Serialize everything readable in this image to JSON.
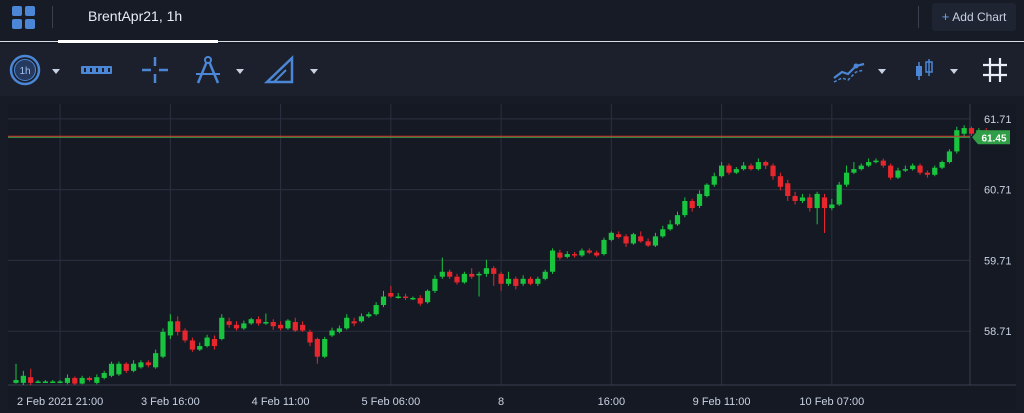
{
  "header": {
    "tab_title": "BrentApr21, 1h",
    "add_chart_label": "Add Chart"
  },
  "toolbar": {
    "interval_label": "1h",
    "icons": [
      "timeframe-icon",
      "ruler-icon",
      "crosshair-icon",
      "compass-drawing-icon",
      "triangle-drawing-icon",
      "indicators-icon",
      "candlestick-type-icon",
      "grid-icon"
    ]
  },
  "colors": {
    "up": "#19c43f",
    "down": "#e8262d",
    "accent": "#4b87d6",
    "price_line": "#3aa84a",
    "price_label_bg": "#2f9e47"
  },
  "chart_data": {
    "type": "candlestick",
    "symbol": "BrentApr21",
    "interval": "1h",
    "y_ticks": [
      58.71,
      59.71,
      60.71,
      61.71
    ],
    "ylim": [
      57.95,
      61.92
    ],
    "x_tick_labels": [
      "2 Feb 2021 21:00",
      "3 Feb 16:00",
      "4 Feb 11:00",
      "5 Feb 06:00",
      "8",
      "16:00",
      "9 Feb 11:00",
      "10 Feb 07:00"
    ],
    "x_tick_bars": [
      6,
      21,
      36,
      51,
      66,
      81,
      96,
      111
    ],
    "current_price": 61.45,
    "candles": [
      [
        57.98,
        58.02,
        58.25,
        57.97
      ],
      [
        57.98,
        58.08,
        58.15,
        57.95
      ],
      [
        58.06,
        57.98,
        58.18,
        57.95
      ],
      [
        58.0,
        58.0,
        58.02,
        57.98
      ],
      [
        58.0,
        58.0,
        58.02,
        57.98
      ],
      [
        58.0,
        58.0,
        58.02,
        57.98
      ],
      [
        58.0,
        58.0,
        58.02,
        57.98
      ],
      [
        57.98,
        58.05,
        58.1,
        57.96
      ],
      [
        58.05,
        57.97,
        58.07,
        57.95
      ],
      [
        57.97,
        58.05,
        58.08,
        57.96
      ],
      [
        58.05,
        58.02,
        58.07,
        58.0
      ],
      [
        57.98,
        58.06,
        58.1,
        57.96
      ],
      [
        58.05,
        58.12,
        58.15,
        58.03
      ],
      [
        58.08,
        58.25,
        58.28,
        58.06
      ],
      [
        58.1,
        58.25,
        58.28,
        58.08
      ],
      [
        58.25,
        58.15,
        58.27,
        58.12
      ],
      [
        58.15,
        58.25,
        58.3,
        58.13
      ],
      [
        58.2,
        58.27,
        58.3,
        58.18
      ],
      [
        58.27,
        58.23,
        58.3,
        58.2
      ],
      [
        58.2,
        58.4,
        58.45,
        58.18
      ],
      [
        58.35,
        58.7,
        58.75,
        58.33
      ],
      [
        58.65,
        58.85,
        58.95,
        58.6
      ],
      [
        58.85,
        58.7,
        58.92,
        58.65
      ],
      [
        58.72,
        58.58,
        58.75,
        58.55
      ],
      [
        58.58,
        58.45,
        58.62,
        58.42
      ],
      [
        58.45,
        58.5,
        58.55,
        58.43
      ],
      [
        58.5,
        58.62,
        58.66,
        58.48
      ],
      [
        58.6,
        58.5,
        58.65,
        58.45
      ],
      [
        58.6,
        58.9,
        58.95,
        58.58
      ],
      [
        58.85,
        58.8,
        58.9,
        58.76
      ],
      [
        58.8,
        58.75,
        58.85,
        58.72
      ],
      [
        58.75,
        58.82,
        58.86,
        58.73
      ],
      [
        58.82,
        58.88,
        58.9,
        58.8
      ],
      [
        58.88,
        58.82,
        58.92,
        58.79
      ],
      [
        58.82,
        58.84,
        58.96,
        58.8
      ],
      [
        58.84,
        58.78,
        58.88,
        58.73
      ],
      [
        58.8,
        58.75,
        58.85,
        58.72
      ],
      [
        58.75,
        58.86,
        58.88,
        58.73
      ],
      [
        58.84,
        58.72,
        58.9,
        58.7
      ],
      [
        58.8,
        58.72,
        58.85,
        58.7
      ],
      [
        58.7,
        58.55,
        58.73,
        58.5
      ],
      [
        58.6,
        58.35,
        58.62,
        58.25
      ],
      [
        58.35,
        58.6,
        58.63,
        58.33
      ],
      [
        58.65,
        58.72,
        58.76,
        58.63
      ],
      [
        58.7,
        58.75,
        58.79,
        58.68
      ],
      [
        58.75,
        58.9,
        58.95,
        58.73
      ],
      [
        58.85,
        58.82,
        58.9,
        58.78
      ],
      [
        58.85,
        58.92,
        58.96,
        58.83
      ],
      [
        58.92,
        58.95,
        58.98,
        58.9
      ],
      [
        58.95,
        59.08,
        59.12,
        58.93
      ],
      [
        59.08,
        59.2,
        59.28,
        59.05
      ],
      [
        59.25,
        59.2,
        59.35,
        59.18
      ],
      [
        59.2,
        59.2,
        59.25,
        59.17
      ],
      [
        59.2,
        59.18,
        59.24,
        59.15
      ],
      [
        59.18,
        59.18,
        59.2,
        59.15
      ],
      [
        59.18,
        59.1,
        59.22,
        59.07
      ],
      [
        59.12,
        59.28,
        59.3,
        59.1
      ],
      [
        59.28,
        59.45,
        59.5,
        59.25
      ],
      [
        59.48,
        59.55,
        59.75,
        59.45
      ],
      [
        59.55,
        59.48,
        59.58,
        59.45
      ],
      [
        59.48,
        59.4,
        59.52,
        59.37
      ],
      [
        59.4,
        59.52,
        59.55,
        59.38
      ],
      [
        59.52,
        59.48,
        59.6,
        59.45
      ],
      [
        59.5,
        59.52,
        59.55,
        59.2
      ],
      [
        59.52,
        59.6,
        59.72,
        59.48
      ],
      [
        59.6,
        59.52,
        59.63,
        59.35
      ],
      [
        59.52,
        59.38,
        59.55,
        59.28
      ],
      [
        59.38,
        59.45,
        59.55,
        59.35
      ],
      [
        59.45,
        59.35,
        59.48,
        59.3
      ],
      [
        59.38,
        59.45,
        59.5,
        59.35
      ],
      [
        59.45,
        59.38,
        59.48,
        59.36
      ],
      [
        59.38,
        59.45,
        59.48,
        59.35
      ],
      [
        59.45,
        59.55,
        59.58,
        59.43
      ],
      [
        59.55,
        59.85,
        59.88,
        59.52
      ],
      [
        59.82,
        59.75,
        59.86,
        59.72
      ],
      [
        59.76,
        59.8,
        59.84,
        59.74
      ],
      [
        59.8,
        59.78,
        59.83,
        59.75
      ],
      [
        59.78,
        59.85,
        59.88,
        59.76
      ],
      [
        59.85,
        59.82,
        59.88,
        59.8
      ],
      [
        59.82,
        59.78,
        59.85,
        59.76
      ],
      [
        59.8,
        60.0,
        60.03,
        59.78
      ],
      [
        60.0,
        60.1,
        60.12,
        59.98
      ],
      [
        60.08,
        60.04,
        60.12,
        60.02
      ],
      [
        60.05,
        59.95,
        60.08,
        59.9
      ],
      [
        59.95,
        60.08,
        60.1,
        59.93
      ],
      [
        60.05,
        59.98,
        60.12,
        59.96
      ],
      [
        59.98,
        59.92,
        60.02,
        59.9
      ],
      [
        59.92,
        60.05,
        60.1,
        59.9
      ],
      [
        60.05,
        60.15,
        60.2,
        60.03
      ],
      [
        60.15,
        60.22,
        60.28,
        60.13
      ],
      [
        60.22,
        60.35,
        60.4,
        60.2
      ],
      [
        60.35,
        60.55,
        60.6,
        60.32
      ],
      [
        60.55,
        60.45,
        60.58,
        60.4
      ],
      [
        60.48,
        60.65,
        60.7,
        60.45
      ],
      [
        60.62,
        60.78,
        60.8,
        60.6
      ],
      [
        60.78,
        60.9,
        60.95,
        60.75
      ],
      [
        60.9,
        61.05,
        61.1,
        60.88
      ],
      [
        61.05,
        60.95,
        61.08,
        60.92
      ],
      [
        60.95,
        61.0,
        61.03,
        60.93
      ],
      [
        61.0,
        61.05,
        61.1,
        60.98
      ],
      [
        61.05,
        61.0,
        61.08,
        60.98
      ],
      [
        61.0,
        61.1,
        61.15,
        60.98
      ],
      [
        61.1,
        61.05,
        61.12,
        61.0
      ],
      [
        61.05,
        60.9,
        61.08,
        60.85
      ],
      [
        60.9,
        60.75,
        60.95,
        60.7
      ],
      [
        60.8,
        60.62,
        60.85,
        60.55
      ],
      [
        60.62,
        60.55,
        60.68,
        60.5
      ],
      [
        60.55,
        60.6,
        60.65,
        60.52
      ],
      [
        60.6,
        60.45,
        60.65,
        60.4
      ],
      [
        60.45,
        60.65,
        60.68,
        60.22
      ],
      [
        60.6,
        60.45,
        60.65,
        60.1
      ],
      [
        60.45,
        60.5,
        60.58,
        60.42
      ],
      [
        60.5,
        60.78,
        60.82,
        60.48
      ],
      [
        60.78,
        60.95,
        61.05,
        60.75
      ],
      [
        60.95,
        61.0,
        61.1,
        60.93
      ],
      [
        61.0,
        61.05,
        61.08,
        60.98
      ],
      [
        61.05,
        61.1,
        61.15,
        61.03
      ],
      [
        61.1,
        61.12,
        61.15,
        61.08
      ],
      [
        61.12,
        61.05,
        61.15,
        61.02
      ],
      [
        61.05,
        60.88,
        61.08,
        60.85
      ],
      [
        60.88,
        60.98,
        61.02,
        60.86
      ],
      [
        60.98,
        61.0,
        61.05,
        60.96
      ],
      [
        61.0,
        61.05,
        61.08,
        60.98
      ],
      [
        61.05,
        60.95,
        61.08,
        60.92
      ],
      [
        60.95,
        60.92,
        60.98,
        60.88
      ],
      [
        60.92,
        61.02,
        61.05,
        60.9
      ],
      [
        61.02,
        61.1,
        61.12,
        61.0
      ],
      [
        61.1,
        61.25,
        61.28,
        61.08
      ],
      [
        61.25,
        61.55,
        61.6,
        61.22
      ],
      [
        61.5,
        61.58,
        61.62,
        61.45
      ],
      [
        61.58,
        61.5,
        61.6,
        61.47
      ],
      [
        61.5,
        61.55,
        61.58,
        61.48
      ],
      [
        61.55,
        61.45,
        61.58,
        61.42
      ]
    ]
  }
}
